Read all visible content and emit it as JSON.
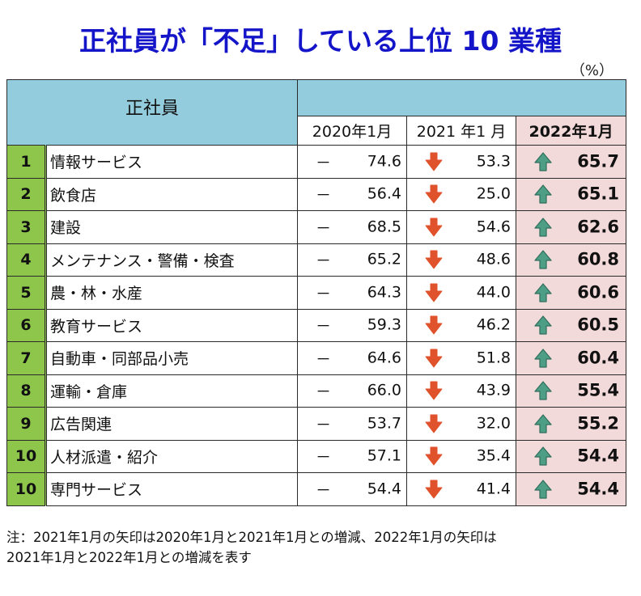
{
  "title": "正社員が「不足」している上位 10 業種",
  "unit": "（%）",
  "table": {
    "corner_label": "正社員",
    "columns": [
      "2020年1月",
      "2021 年1 月",
      "2022年1月"
    ],
    "rows": [
      {
        "rank": "1",
        "industry": "情報サービス",
        "y2020": "74.6",
        "y2021": "53.3",
        "y2022": "65.7"
      },
      {
        "rank": "2",
        "industry": "飲食店",
        "y2020": "56.4",
        "y2021": "25.0",
        "y2022": "65.1"
      },
      {
        "rank": "3",
        "industry": "建設",
        "y2020": "68.5",
        "y2021": "54.6",
        "y2022": "62.6"
      },
      {
        "rank": "4",
        "industry": "メンテナンス・警備・検査",
        "y2020": "65.2",
        "y2021": "48.6",
        "y2022": "60.8"
      },
      {
        "rank": "5",
        "industry": "農・林・水産",
        "y2020": "64.3",
        "y2021": "44.0",
        "y2022": "60.6"
      },
      {
        "rank": "6",
        "industry": "教育サービス",
        "y2020": "59.3",
        "y2021": "46.2",
        "y2022": "60.5"
      },
      {
        "rank": "7",
        "industry": "自動車・同部品小売",
        "y2020": "64.6",
        "y2021": "51.8",
        "y2022": "60.4"
      },
      {
        "rank": "8",
        "industry": "運輸・倉庫",
        "y2020": "66.0",
        "y2021": "43.9",
        "y2022": "55.4"
      },
      {
        "rank": "9",
        "industry": "広告関連",
        "y2020": "53.7",
        "y2021": "32.0",
        "y2022": "55.2"
      },
      {
        "rank": "10",
        "industry": "人材派遣・紹介",
        "y2020": "57.1",
        "y2021": "35.4",
        "y2022": "54.4"
      },
      {
        "rank": "10",
        "industry": "専門サービス",
        "y2020": "54.4",
        "y2021": "41.4",
        "y2022": "54.4"
      }
    ],
    "dash": "－",
    "icons": {
      "y2021": "arrow-down-icon",
      "y2022": "arrow-up-icon"
    }
  },
  "colors": {
    "title": "#1414c8",
    "header_bg": "#93ccdc",
    "rank_bg": "#8dc64b",
    "current_col_bg": "#f3dada",
    "arrow_down": "#e0522b",
    "arrow_up": "#4e9e86"
  },
  "note": {
    "line1": "注：2021年1月の矢印は2020年1月と2021年1月との増減、2022年1月の矢印は",
    "line2": "2021年1月と2022年1月との増減を表す"
  }
}
